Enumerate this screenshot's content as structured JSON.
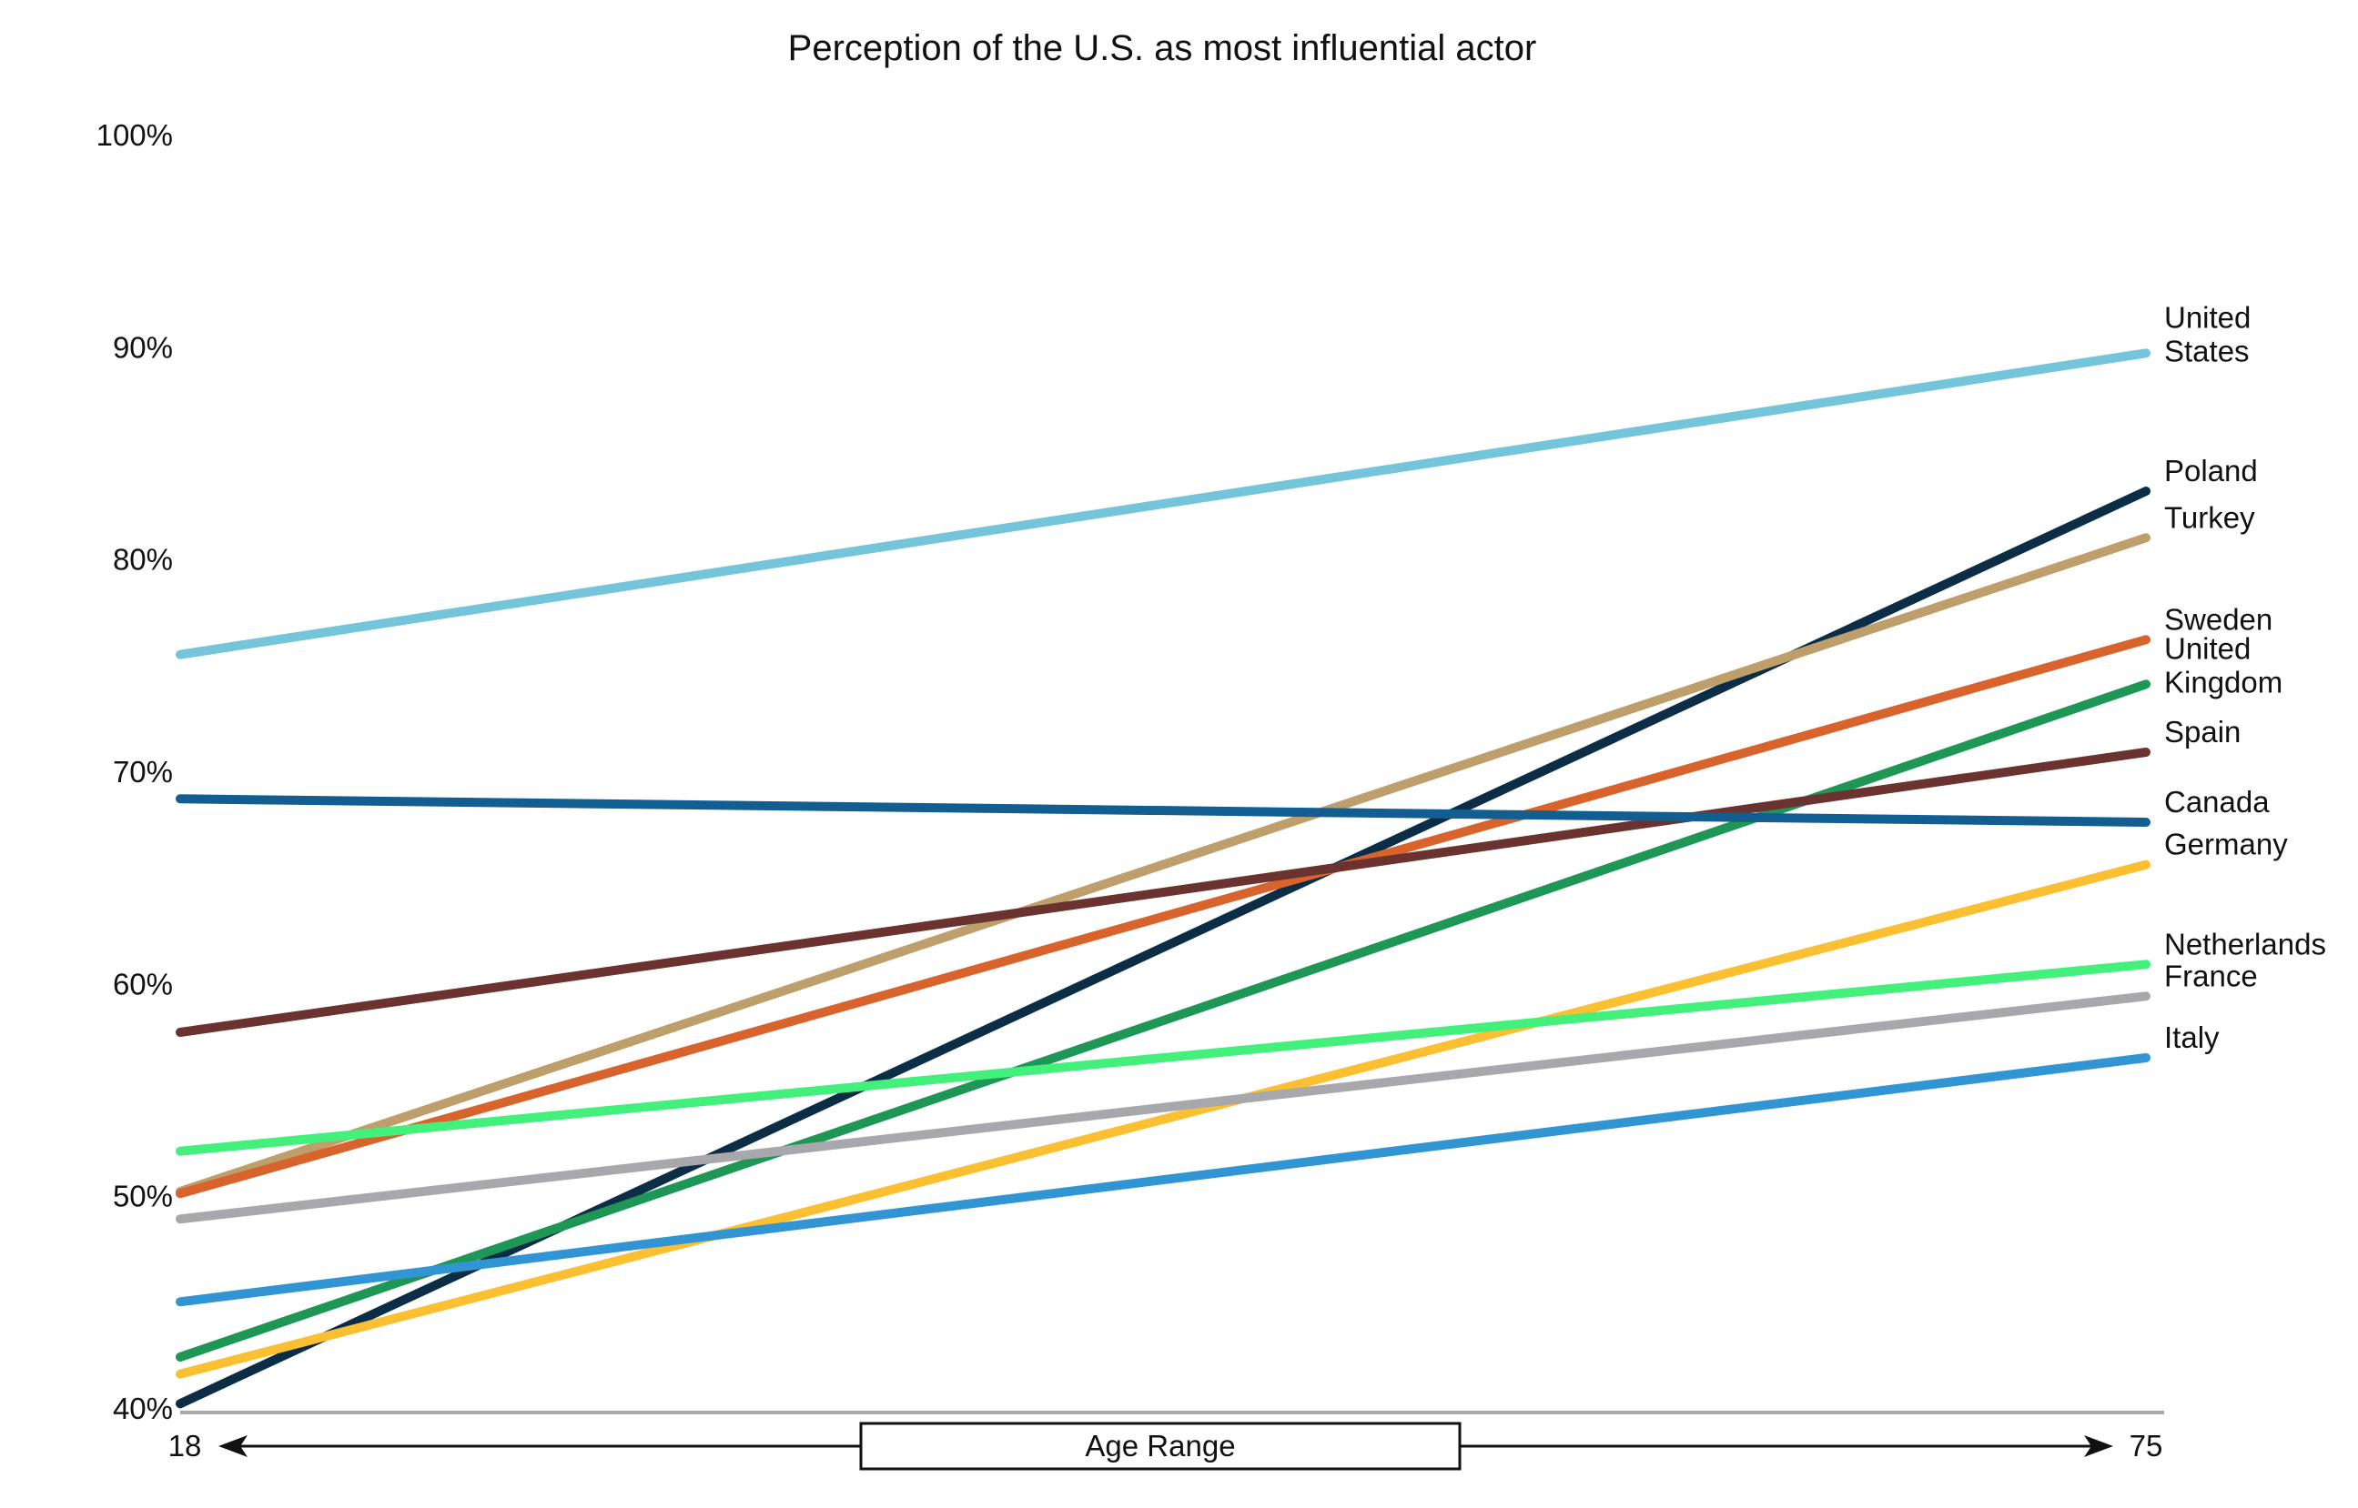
{
  "chart_data": {
    "type": "line",
    "title": "Perception of the U.S. as most influential actor",
    "xlabel": "Age Range",
    "ylabel": "",
    "x": [
      18,
      75
    ],
    "x_tick_labels": [
      "18",
      "75"
    ],
    "ylim": [
      40,
      100
    ],
    "y_ticks": [
      40,
      50,
      60,
      70,
      80,
      90,
      100
    ],
    "y_tick_labels": [
      "40%",
      "50%",
      "60%",
      "70%",
      "80%",
      "90%",
      "100%"
    ],
    "grid": false,
    "legend": "right-end labels",
    "series": [
      {
        "name": "United States",
        "label_lines": [
          "United",
          "States"
        ],
        "values": [
          75.5,
          89.7
        ],
        "color": "#74C4DA"
      },
      {
        "name": "Poland",
        "label_lines": [
          "Poland"
        ],
        "values": [
          40.2,
          83.2
        ],
        "color": "#0B2D45"
      },
      {
        "name": "Turkey",
        "label_lines": [
          "Turkey"
        ],
        "values": [
          50.2,
          81.0
        ],
        "color": "#BE9E6A"
      },
      {
        "name": "Sweden",
        "label_lines": [
          "Sweden"
        ],
        "values": [
          50.1,
          76.2
        ],
        "color": "#D9632C"
      },
      {
        "name": "United Kingdom",
        "label_lines": [
          "United",
          "Kingdom"
        ],
        "values": [
          42.4,
          74.1
        ],
        "color": "#1E9656"
      },
      {
        "name": "Spain",
        "label_lines": [
          "Spain"
        ],
        "values": [
          57.7,
          70.9
        ],
        "color": "#6A3330"
      },
      {
        "name": "Canada",
        "label_lines": [
          "Canada"
        ],
        "values": [
          68.7,
          67.6
        ],
        "color": "#135E91"
      },
      {
        "name": "Germany",
        "label_lines": [
          "Germany"
        ],
        "values": [
          41.6,
          65.6
        ],
        "color": "#FBBF32"
      },
      {
        "name": "Netherlands",
        "label_lines": [
          "Netherlands"
        ],
        "values": [
          52.1,
          60.9
        ],
        "color": "#43F07C"
      },
      {
        "name": "France",
        "label_lines": [
          "France"
        ],
        "values": [
          48.9,
          59.4
        ],
        "color": "#A8A8AC"
      },
      {
        "name": "Italy",
        "label_lines": [
          "Italy"
        ],
        "values": [
          45.0,
          56.5
        ],
        "color": "#3195D3"
      }
    ]
  }
}
